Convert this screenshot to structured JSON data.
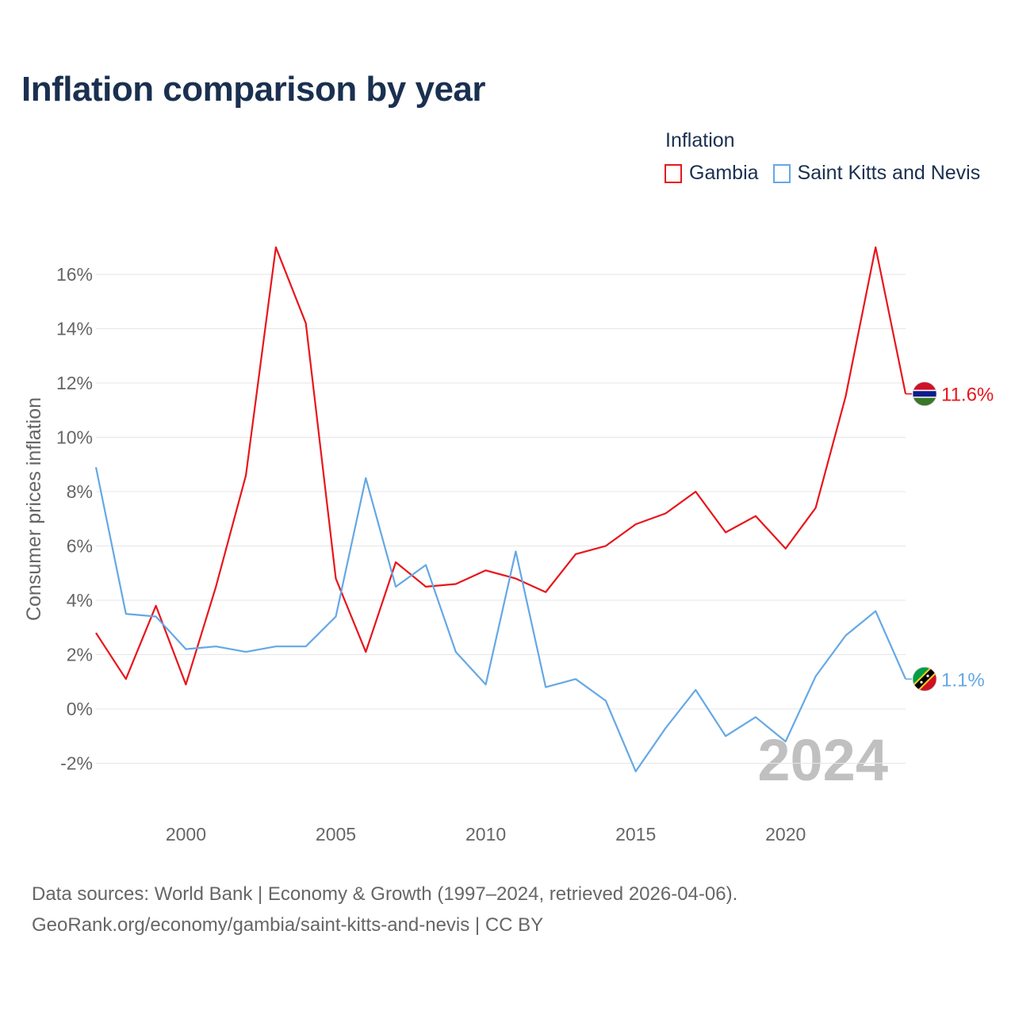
{
  "title": "Inflation comparison by year",
  "legend": {
    "title": "Inflation",
    "items": [
      {
        "name": "Gambia",
        "color": "#e8151b"
      },
      {
        "name": "Saint Kitts and Nevis",
        "color": "#64a8e6"
      }
    ]
  },
  "year_watermark": "2024",
  "source_line1": "Data sources: World Bank | Economy & Growth (1997–2024, retrieved 2026-04-06).",
  "source_line2": "GeoRank.org/economy/gambia/saint-kitts-and-nevis | CC BY",
  "chart_data": {
    "type": "line",
    "title": "Inflation comparison by year",
    "xlabel": "",
    "ylabel": "Consumer prices inflation",
    "xlim": [
      1997,
      2024
    ],
    "ylim": [
      -3,
      17
    ],
    "x_ticks": [
      2000,
      2005,
      2010,
      2015,
      2020
    ],
    "y_ticks": [
      -2,
      0,
      2,
      4,
      6,
      8,
      10,
      12,
      14,
      16
    ],
    "y_tick_labels": [
      "-2%",
      "0%",
      "2%",
      "4%",
      "6%",
      "8%",
      "10%",
      "12%",
      "14%",
      "16%"
    ],
    "x": [
      1997,
      1998,
      1999,
      2000,
      2001,
      2002,
      2003,
      2004,
      2005,
      2006,
      2007,
      2008,
      2009,
      2010,
      2011,
      2012,
      2013,
      2014,
      2015,
      2016,
      2017,
      2018,
      2019,
      2020,
      2021,
      2022,
      2023,
      2024
    ],
    "series": [
      {
        "name": "Gambia",
        "color": "#e8151b",
        "end_label": "11.6%",
        "flag": "gambia",
        "values": [
          2.8,
          1.1,
          3.8,
          0.9,
          4.5,
          8.6,
          17.0,
          14.2,
          4.8,
          2.1,
          5.4,
          4.5,
          4.6,
          5.1,
          4.8,
          4.3,
          5.7,
          6.0,
          6.8,
          7.2,
          8.0,
          6.5,
          7.1,
          5.9,
          7.4,
          11.5,
          17.0,
          11.6
        ]
      },
      {
        "name": "Saint Kitts and Nevis",
        "color": "#64a8e6",
        "end_label": "1.1%",
        "flag": "saint-kitts-and-nevis",
        "values": [
          8.9,
          3.5,
          3.4,
          2.2,
          2.3,
          2.1,
          2.3,
          2.3,
          3.4,
          8.5,
          4.5,
          5.3,
          2.1,
          0.9,
          5.8,
          0.8,
          1.1,
          0.3,
          -2.3,
          -0.7,
          0.7,
          -1.0,
          -0.3,
          -1.2,
          1.2,
          2.7,
          3.6,
          1.1
        ]
      }
    ]
  }
}
